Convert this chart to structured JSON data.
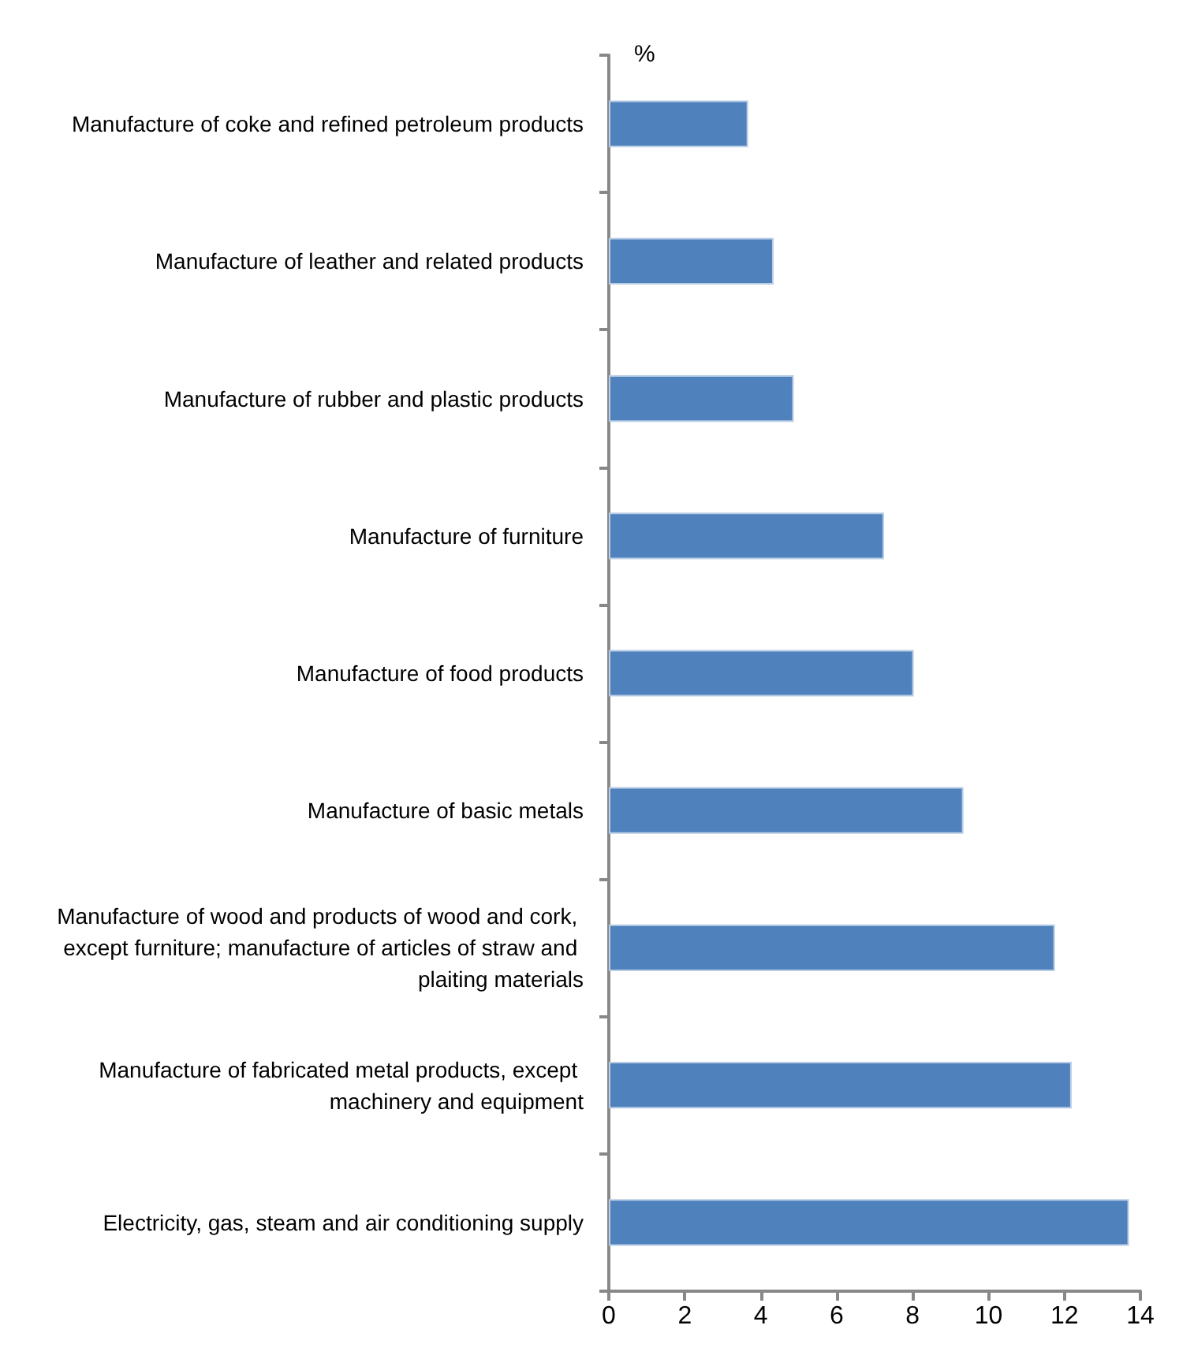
{
  "chart_data": {
    "type": "bar",
    "orientation": "horizontal",
    "xlabel": "%",
    "categories": [
      "Manufacture of coke and refined petroleum products",
      "Manufacture of leather and related products",
      "Manufacture of rubber and plastic products",
      "Manufacture of furniture",
      "Manufacture of food products",
      "Manufacture of basic metals",
      "Manufacture of wood and products of wood and cork, except furniture; manufacture of articles of straw and plaiting materials",
      "Manufacture of fabricated metal products, except machinery and equipment",
      "Electricity, gas, steam and air conditioning supply"
    ],
    "values": [
      3.67,
      4.34,
      4.87,
      7.25,
      8.03,
      9.34,
      11.75,
      12.19,
      13.7
    ],
    "color": "#4f81bd",
    "xlim": [
      0,
      14
    ],
    "xticks": [
      0,
      2,
      4,
      6,
      8,
      10,
      12,
      14
    ]
  }
}
